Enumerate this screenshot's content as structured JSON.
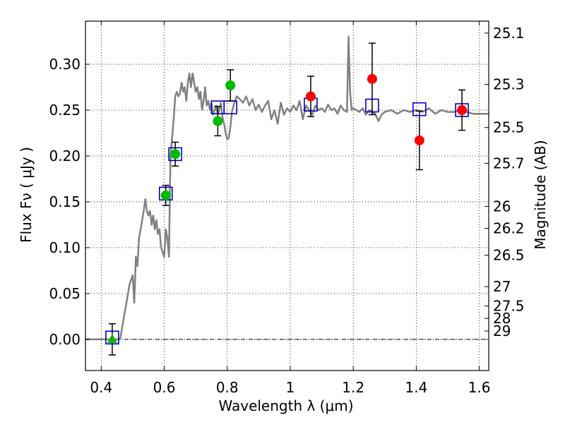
{
  "chart_data": {
    "type": "scatter",
    "xlabel": "Wavelength  λ (μm)",
    "ylabel_left": "Flux  Fν  ( μJy )",
    "ylabel_right": "Magnitude (AB)",
    "xlim": [
      0.35,
      1.63
    ],
    "ylim": [
      -0.034,
      0.347
    ],
    "grid": true,
    "xticks": [
      0.4,
      0.6,
      0.8,
      1.0,
      1.2,
      1.4,
      1.6
    ],
    "xtick_labels": [
      "0.4",
      "0.6",
      "0.8",
      "1",
      "1.2",
      "1.4",
      "1.6"
    ],
    "yticks": [
      0.0,
      0.05,
      0.1,
      0.15,
      0.2,
      0.25,
      0.3
    ],
    "ytick_labels": [
      "0.00",
      "0.05",
      "0.10",
      "0.15",
      "0.20",
      "0.25",
      "0.30"
    ],
    "mag_ticks": [
      {
        "label": "25.1",
        "flux": 0.334
      },
      {
        "label": "25.3",
        "flux": 0.278
      },
      {
        "label": "25.5",
        "flux": 0.231
      },
      {
        "label": "25.7",
        "flux": 0.192
      },
      {
        "label": "26",
        "flux": 0.145
      },
      {
        "label": "26.2",
        "flux": 0.121
      },
      {
        "label": "26.5",
        "flux": 0.0917
      },
      {
        "label": "27",
        "flux": 0.0575
      },
      {
        "label": "27.5",
        "flux": 0.0363
      },
      {
        "label": "28",
        "flux": 0.0229
      },
      {
        "label": "29",
        "flux": 0.0091
      }
    ],
    "series": [
      {
        "marker": "line",
        "color": "#808080",
        "x": [
          0.35,
          0.46,
          0.47,
          0.48,
          0.49,
          0.5,
          0.505,
          0.51,
          0.515,
          0.52,
          0.525,
          0.53,
          0.535,
          0.54,
          0.545,
          0.55,
          0.555,
          0.56,
          0.565,
          0.57,
          0.575,
          0.58,
          0.585,
          0.59,
          0.595,
          0.6,
          0.605,
          0.61,
          0.615,
          0.62,
          0.625,
          0.63,
          0.635,
          0.64,
          0.645,
          0.65,
          0.655,
          0.66,
          0.665,
          0.67,
          0.675,
          0.68,
          0.685,
          0.69,
          0.695,
          0.7,
          0.705,
          0.71,
          0.715,
          0.72,
          0.725,
          0.73,
          0.735,
          0.74,
          0.745,
          0.75,
          0.755,
          0.76,
          0.765,
          0.77,
          0.775,
          0.78,
          0.785,
          0.79,
          0.795,
          0.8,
          0.805,
          0.81,
          0.815,
          0.82,
          0.825,
          0.83,
          0.84,
          0.85,
          0.86,
          0.87,
          0.88,
          0.89,
          0.9,
          0.91,
          0.92,
          0.93,
          0.94,
          0.95,
          0.96,
          0.97,
          0.98,
          0.99,
          1.0,
          1.01,
          1.02,
          1.03,
          1.04,
          1.05,
          1.06,
          1.07,
          1.08,
          1.09,
          1.1,
          1.11,
          1.12,
          1.13,
          1.14,
          1.15,
          1.16,
          1.17,
          1.18,
          1.185,
          1.19,
          1.195,
          1.2,
          1.21,
          1.22,
          1.23,
          1.24,
          1.25,
          1.26,
          1.27,
          1.28,
          1.29,
          1.3,
          1.32,
          1.34,
          1.36,
          1.38,
          1.4,
          1.42,
          1.44,
          1.46,
          1.48,
          1.5,
          1.52,
          1.54,
          1.56,
          1.58,
          1.6,
          1.63
        ],
        "y": [
          0.0,
          0.0,
          0.02,
          0.04,
          0.06,
          0.07,
          0.04,
          0.09,
          0.08,
          0.11,
          0.12,
          0.13,
          0.14,
          0.153,
          0.14,
          0.135,
          0.14,
          0.125,
          0.135,
          0.12,
          0.13,
          0.115,
          0.12,
          0.1,
          0.095,
          0.09,
          0.12,
          0.11,
          0.09,
          0.2,
          0.22,
          0.24,
          0.265,
          0.27,
          0.265,
          0.268,
          0.28,
          0.27,
          0.275,
          0.26,
          0.28,
          0.29,
          0.275,
          0.29,
          0.28,
          0.27,
          0.275,
          0.262,
          0.27,
          0.25,
          0.26,
          0.275,
          0.255,
          0.26,
          0.25,
          0.258,
          0.245,
          0.25,
          0.255,
          0.245,
          0.25,
          0.258,
          0.242,
          0.235,
          0.225,
          0.218,
          0.22,
          0.232,
          0.248,
          0.255,
          0.26,
          0.265,
          0.262,
          0.258,
          0.265,
          0.255,
          0.262,
          0.25,
          0.256,
          0.248,
          0.255,
          0.26,
          0.24,
          0.25,
          0.235,
          0.258,
          0.245,
          0.252,
          0.248,
          0.255,
          0.25,
          0.26,
          0.24,
          0.255,
          0.25,
          0.245,
          0.255,
          0.25,
          0.252,
          0.248,
          0.256,
          0.25,
          0.252,
          0.246,
          0.255,
          0.25,
          0.248,
          0.33,
          0.27,
          0.25,
          0.252,
          0.25,
          0.248,
          0.252,
          0.245,
          0.25,
          0.248,
          0.246,
          0.238,
          0.245,
          0.248,
          0.25,
          0.246,
          0.25,
          0.248,
          0.25,
          0.248,
          0.252,
          0.246,
          0.25,
          0.248,
          0.248,
          0.25,
          0.248,
          0.246,
          0.246,
          0.246
        ]
      },
      {
        "marker": "open-square",
        "color": "#0000cc",
        "x": [
          0.435,
          0.605,
          0.635,
          0.77,
          0.81,
          1.065,
          1.26,
          1.41,
          1.545
        ],
        "y": [
          0.002,
          0.159,
          0.202,
          0.253,
          0.253,
          0.256,
          0.255,
          0.251,
          0.25
        ]
      },
      {
        "marker": "circle",
        "color": "#00bb00",
        "x": [
          0.605,
          0.635,
          0.77,
          0.81
        ],
        "y": [
          0.157,
          0.202,
          0.238,
          0.277
        ],
        "err": [
          0.011,
          0.013,
          0.016,
          0.017
        ]
      },
      {
        "marker": "triangle",
        "color": "#00bb00",
        "x": [
          0.435
        ],
        "y": [
          0.0
        ],
        "err": [
          0.017
        ]
      },
      {
        "marker": "circle",
        "color": "#ff0000",
        "x": [
          1.065,
          1.26,
          1.41,
          1.545
        ],
        "y": [
          0.265,
          0.284,
          0.217,
          0.25
        ],
        "err": [
          0.022,
          0.039,
          0.032,
          0.022
        ]
      }
    ]
  }
}
